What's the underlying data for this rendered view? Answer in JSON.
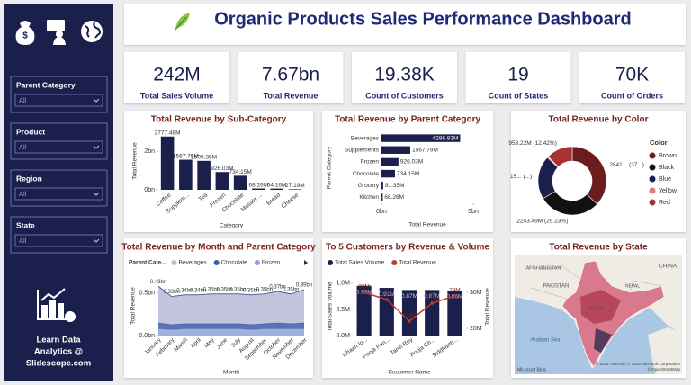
{
  "header": {
    "title": "Organic Products Sales Performance Dashboard"
  },
  "sidebar": {
    "filters": [
      {
        "label": "Parent Category",
        "value": "All"
      },
      {
        "label": "Product",
        "value": "All"
      },
      {
        "label": "Region",
        "value": "All"
      },
      {
        "label": "State",
        "value": "All"
      }
    ],
    "footer": [
      "Learn Data",
      "Analytics @",
      "Slidescope.com"
    ]
  },
  "kpis": [
    {
      "value": "242M",
      "label": "Total Sales Volume"
    },
    {
      "value": "7.67bn",
      "label": "Total Revenue"
    },
    {
      "value": "19.38K",
      "label": "Count of Customers"
    },
    {
      "value": "19",
      "label": "Count of States"
    },
    {
      "value": "70K",
      "label": "Count of Orders"
    }
  ],
  "chart_data": [
    {
      "type": "bar",
      "title": "Total Revenue by Sub-Category",
      "x_label": "Category",
      "y_label": "Total Revenue",
      "categories": [
        "Coffee",
        "Supplem...",
        "Tea",
        "Frozen",
        "Chocolate",
        "Masala ...",
        "Bread",
        "Cheese"
      ],
      "values": [
        2.77748,
        1.56779,
        1.50935,
        0.92603,
        0.73415,
        0.06826,
        0.06416,
        0.02719
      ],
      "value_labels": [
        "2777.48M",
        "1567.79M",
        "1509.35M",
        "926.03M",
        "734.15M",
        "68.26M",
        "64.16M",
        "27.19M"
      ],
      "color": "#1b1f4b",
      "ylim": [
        0,
        3
      ],
      "yticks": [
        {
          "value": 0,
          "label": "0bn"
        },
        {
          "value": 2,
          "label": "2bn"
        }
      ]
    },
    {
      "type": "hbar",
      "title": "Total Revenue by Parent Category",
      "x_label": "Total Revenue",
      "y_label": "Parent Category",
      "categories": [
        "Beverages",
        "Supplements",
        "Frozen",
        "Chocolate",
        "Grocery",
        "Kitchen"
      ],
      "values": [
        4.28683,
        1.56779,
        0.92603,
        0.73415,
        0.09135,
        0.06826
      ],
      "value_labels": [
        "4286.83M",
        "1567.79M",
        "926.03M",
        "734.15M",
        "91.35M",
        "68.26M"
      ],
      "color": "#1b1f4b",
      "xlim": [
        0,
        5
      ],
      "xticks": [
        {
          "value": 0,
          "label": "0bn"
        },
        {
          "value": 5,
          "label": "5bn"
        }
      ]
    },
    {
      "type": "donut",
      "title": "Total Revenue by Color",
      "legend_title": "Color",
      "categories": [
        "Brown",
        "Black",
        "Blue",
        "Yellow",
        "Red"
      ],
      "values": [
        2841,
        2243.49,
        1590,
        46,
        953.22
      ],
      "value_labels": [
        "2841... (37...)",
        "2243.49M (29.23%)",
        "15... (...)",
        null,
        "953.22M (12.42%)"
      ],
      "colors": [
        "#6b1d1d",
        "#111111",
        "#1b1f4b",
        "#e07a7a",
        "#a83232"
      ]
    },
    {
      "type": "area",
      "stacked": true,
      "title": "Total Revenue by Month and Parent Category",
      "x_label": "Month",
      "y_label": "Total Revenue",
      "legend_title": "Parent Cate...",
      "categories": [
        "January",
        "February",
        "March",
        "April",
        "May",
        "June",
        "July",
        "August",
        "September",
        "October",
        "November",
        "December"
      ],
      "series": [
        {
          "name": "Beverages",
          "color": "#b9bbd6",
          "values": [
            0.43,
            0.33,
            0.34,
            0.34,
            0.35,
            0.35,
            0.35,
            0.35,
            0.35,
            0.37,
            0.35,
            0.39
          ],
          "value_labels": [
            "0.43bn",
            "0.33bn",
            "0.34bn",
            "0.34bn",
            "0.35bn",
            "0.35bn",
            "0.35bn",
            "0.35bn",
            "0.35bn",
            "0.37bn",
            "0.35bn",
            "0.39bn"
          ]
        },
        {
          "name": "Chocolate",
          "color": "#3d5aa8",
          "values": [
            0.07,
            0.06,
            0.06,
            0.06,
            0.06,
            0.06,
            0.06,
            0.06,
            0.06,
            0.07,
            0.06,
            0.07
          ]
        },
        {
          "name": "Frozen",
          "color": "#8fa3d6",
          "values": [
            0.08,
            0.07,
            0.08,
            0.08,
            0.08,
            0.08,
            0.08,
            0.07,
            0.08,
            0.08,
            0.08,
            0.08
          ]
        }
      ],
      "ylim": [
        0,
        0.7
      ],
      "yticks": [
        {
          "value": 0,
          "label": "0.0bn"
        },
        {
          "value": 0.5,
          "label": "0.5bn"
        }
      ]
    },
    {
      "type": "combo",
      "title": "To 5 Customers by Revenue & Volume",
      "x_label": "Customer Name",
      "y_label": "Total Sales Volume",
      "y2_label": "Total Revenue",
      "categories": [
        "Ishaan Io...",
        "Pooja Pan...",
        "Tanvi Roy",
        "Pooja Ch...",
        "Siddharth..."
      ],
      "series": [
        {
          "name": "Total Sales Volume",
          "type": "bar",
          "color": "#1b1f4b",
          "values": [
            0.95,
            0.91,
            0.87,
            0.87,
            0.86
          ],
          "value_labels": [
            "0.95M",
            "0.91M",
            "0.87M",
            "0.87M",
            "0.86M"
          ]
        },
        {
          "name": "Total Revenue",
          "type": "line",
          "axis": "y2",
          "color": "#c0392b",
          "values": [
            30,
            28,
            22,
            27,
            29
          ],
          "value_labels": [
            "30M",
            "28M",
            "22M",
            "27M",
            "29M"
          ]
        }
      ],
      "ylim": [
        0,
        1.1
      ],
      "yticks": [
        {
          "value": 0,
          "label": "0.0M"
        },
        {
          "value": 0.5,
          "label": "0.5M"
        },
        {
          "value": 1,
          "label": "1.0M"
        }
      ],
      "y2lim": [
        18,
        34
      ],
      "y2ticks": [
        {
          "value": 20,
          "label": "20M"
        },
        {
          "value": 30,
          "label": "30M"
        }
      ]
    }
  ],
  "map": {
    "title": "Total Revenue by State",
    "labels": [
      "AFGHANISTAN",
      "PAKISTAN",
      "CHINA",
      "NEPAL",
      "INDIA",
      "Arabian Sea"
    ],
    "attribution": [
      "© 2025 TomTom, © 2025 Microsoft Corporation",
      "© OpenStreetMap"
    ],
    "provider": "Microsoft Bing"
  }
}
